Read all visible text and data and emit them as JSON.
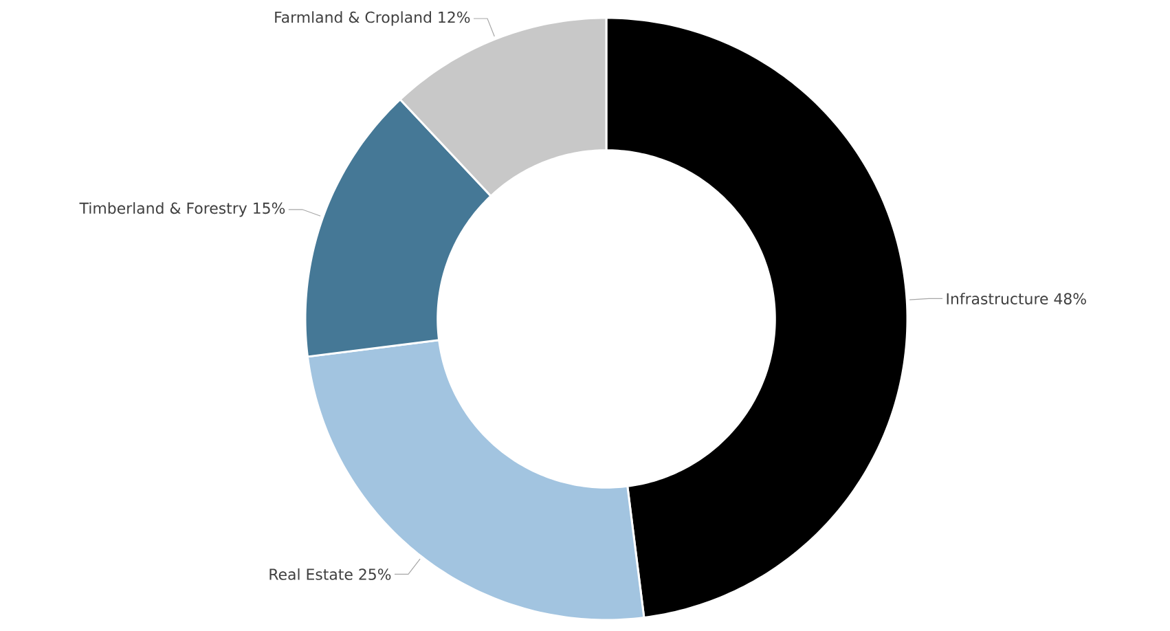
{
  "chart_data": {
    "type": "donut",
    "categories": [
      "Infrastructure",
      "Real Estate",
      "Timberland & Forestry",
      "Farmland & Cropland"
    ],
    "values": [
      48,
      25,
      15,
      12
    ],
    "value_labels": [
      "48%",
      "25%",
      "15%",
      "12%"
    ],
    "colors": [
      "#000000",
      "#a2c4e0",
      "#457896",
      "#c8c8c8"
    ]
  }
}
